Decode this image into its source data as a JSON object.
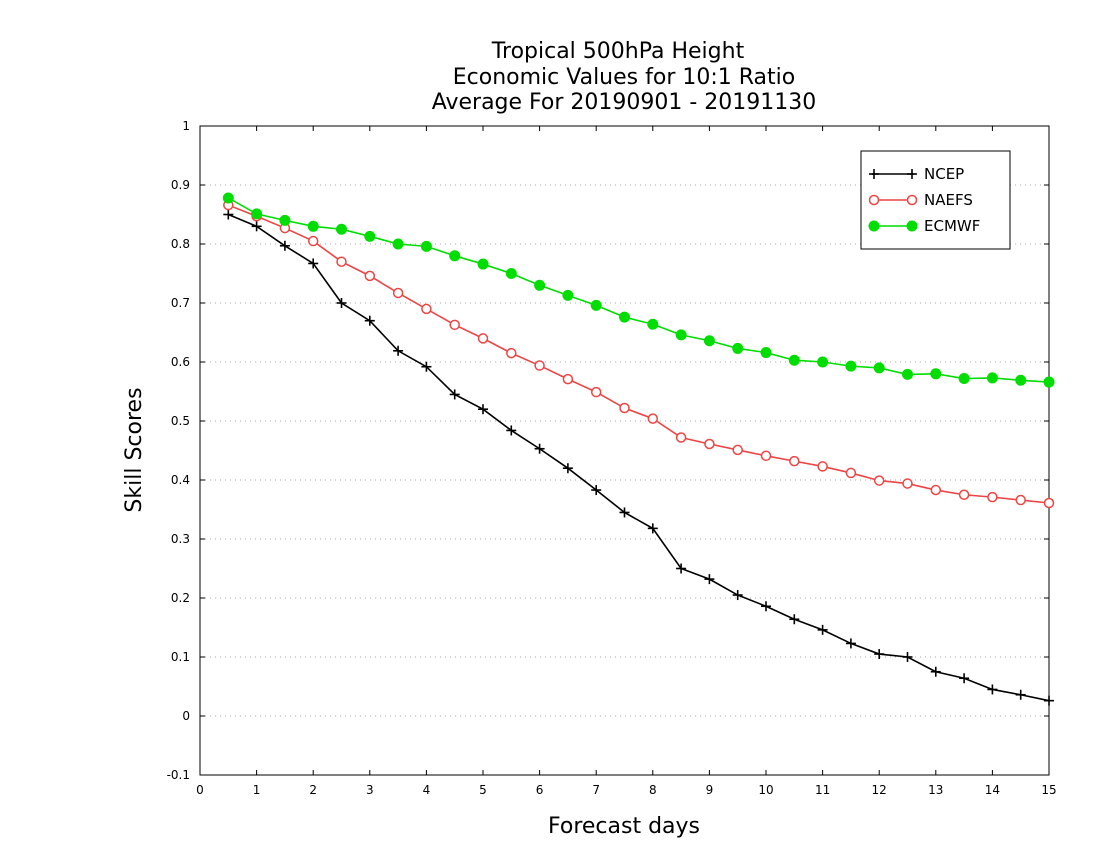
{
  "chart_data": {
    "type": "line",
    "title": [
      "Tropical 500hPa Height",
      "Economic Values for 10:1 Ratio",
      "Average For 20190901 - 20191130"
    ],
    "xlabel": "Forecast days",
    "ylabel": "Skill Scores",
    "xlim": [
      0,
      15
    ],
    "ylim": [
      -0.1,
      1
    ],
    "xticks": [
      0,
      1,
      2,
      3,
      4,
      5,
      6,
      7,
      8,
      9,
      10,
      11,
      12,
      13,
      14,
      15
    ],
    "xtick_labels": [
      "0",
      "1",
      "2",
      "3",
      "4",
      "5",
      "6",
      "7",
      "8",
      "9",
      "10",
      "11",
      "12",
      "13",
      "14",
      "15"
    ],
    "yticks": [
      -0.1,
      0,
      0.1,
      0.2,
      0.3,
      0.4,
      0.5,
      0.6,
      0.7,
      0.8,
      0.9,
      1
    ],
    "ytick_labels": [
      "-0.1",
      "0",
      "0.1",
      "0.2",
      "0.3",
      "0.4",
      "0.5",
      "0.6",
      "0.7",
      "0.8",
      "0.9",
      "1"
    ],
    "grid": "horizontal-dotted",
    "legend_position": "top-right",
    "x": [
      0.5,
      1,
      1.5,
      2,
      2.5,
      3,
      3.5,
      4,
      4.5,
      5,
      5.5,
      6,
      6.5,
      7,
      7.5,
      8,
      8.5,
      9,
      9.5,
      10,
      10.5,
      11,
      11.5,
      12,
      12.5,
      13,
      13.5,
      14,
      14.5,
      15
    ],
    "series": [
      {
        "name": "NCEP",
        "color": "#000000",
        "marker": "plus",
        "values": [
          0.85,
          0.83,
          0.797,
          0.767,
          0.7,
          0.67,
          0.619,
          0.592,
          0.545,
          0.52,
          0.484,
          0.453,
          0.42,
          0.383,
          0.345,
          0.318,
          0.25,
          0.232,
          0.205,
          0.186,
          0.164,
          0.146,
          0.123,
          0.105,
          0.1,
          0.075,
          0.064,
          0.045,
          0.036,
          0.026
        ]
      },
      {
        "name": "NAEFS",
        "color": "#ee4444",
        "marker": "open-circle",
        "values": [
          0.866,
          0.847,
          0.827,
          0.805,
          0.77,
          0.746,
          0.717,
          0.69,
          0.663,
          0.64,
          0.615,
          0.594,
          0.571,
          0.549,
          0.522,
          0.504,
          0.472,
          0.461,
          0.451,
          0.441,
          0.432,
          0.423,
          0.412,
          0.399,
          0.394,
          0.383,
          0.375,
          0.371,
          0.366,
          0.361
        ]
      },
      {
        "name": "ECMWF",
        "color": "#00dd00",
        "marker": "filled-circle",
        "values": [
          0.878,
          0.851,
          0.84,
          0.83,
          0.825,
          0.813,
          0.8,
          0.796,
          0.78,
          0.766,
          0.75,
          0.73,
          0.713,
          0.696,
          0.676,
          0.664,
          0.646,
          0.636,
          0.623,
          0.616,
          0.603,
          0.6,
          0.593,
          0.59,
          0.579,
          0.58,
          0.572,
          0.573,
          0.569,
          0.566
        ]
      }
    ]
  }
}
